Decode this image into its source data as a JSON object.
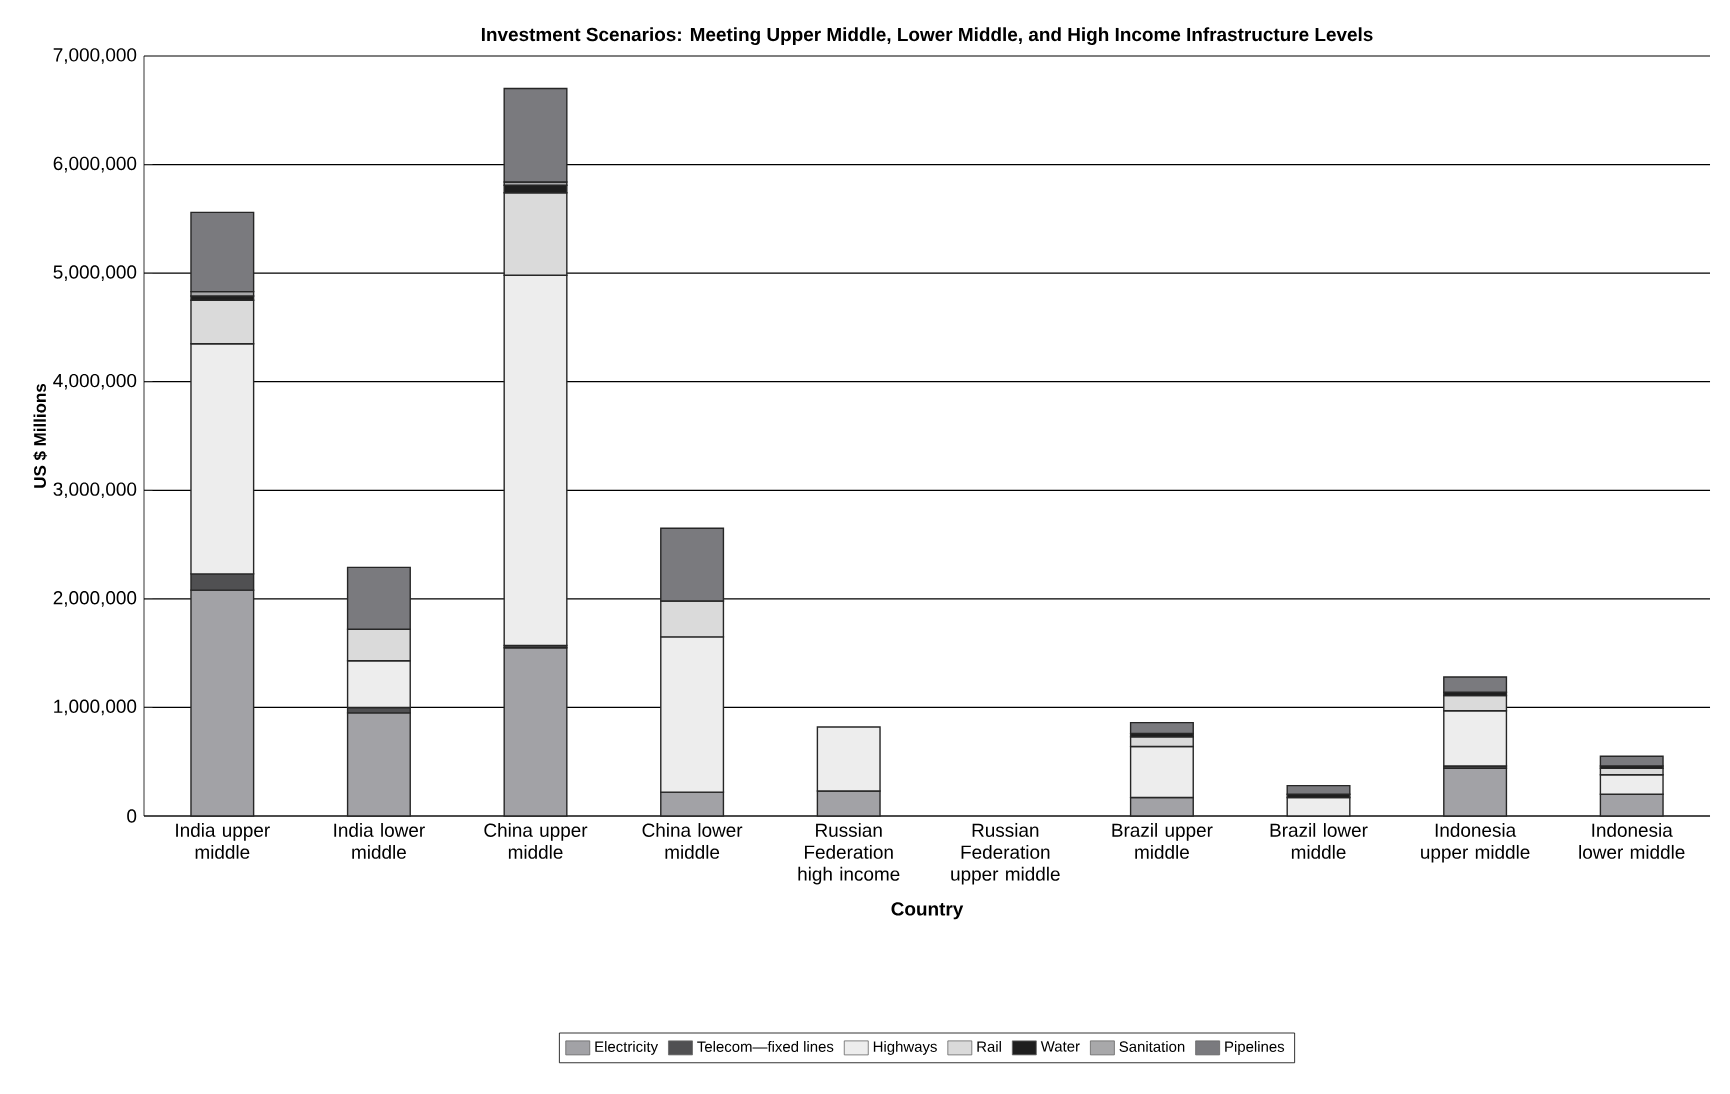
{
  "chart_data": {
    "type": "bar",
    "stacked": true,
    "title": "Investment Scenarios: Meeting Upper Middle, Lower Middle, and High Income Infrastructure Levels",
    "xlabel": "Country",
    "ylabel": "US $ Millions",
    "categories": [
      "India upper middle",
      "India lower middle",
      "China upper middle",
      "China lower middle",
      "Russian Federation high income",
      "Russian Federation upper middle",
      "Brazil upper middle",
      "Brazil lower middle",
      "Indonesia upper middle",
      "Indonesia lower middle"
    ],
    "series": [
      {
        "name": "Electricity",
        "color": "#a2a2a6",
        "values": [
          2080000,
          950000,
          1550000,
          220000,
          230000,
          null,
          170000,
          null,
          440000,
          200000
        ]
      },
      {
        "name": "Telecom—fixed lines",
        "color": "#505052",
        "values": [
          150000,
          50000,
          20000,
          null,
          null,
          null,
          null,
          null,
          20000,
          null
        ]
      },
      {
        "name": "Highways",
        "color": "#ededed",
        "values": [
          2120000,
          430000,
          3410000,
          1430000,
          590000,
          null,
          470000,
          170000,
          510000,
          180000
        ]
      },
      {
        "name": "Rail",
        "color": "#dadada",
        "values": [
          400000,
          290000,
          760000,
          330000,
          null,
          null,
          90000,
          null,
          140000,
          60000
        ]
      },
      {
        "name": "Water",
        "color": "#1e1e1e",
        "values": [
          40000,
          null,
          70000,
          null,
          null,
          null,
          30000,
          30000,
          30000,
          20000
        ]
      },
      {
        "name": "Sanitation",
        "color": "#a8a8aa",
        "values": [
          40000,
          null,
          30000,
          null,
          null,
          null,
          null,
          null,
          null,
          null
        ]
      },
      {
        "name": "Pipelines",
        "color": "#7a7a7e",
        "values": [
          730000,
          570000,
          860000,
          670000,
          null,
          null,
          100000,
          80000,
          140000,
          90000
        ]
      }
    ],
    "ylim": [
      0,
      7000000
    ],
    "yticks": [
      {
        "value": 0,
        "label": "0"
      },
      {
        "value": 1000000,
        "label": "1,000,000"
      },
      {
        "value": 2000000,
        "label": "2,000,000"
      },
      {
        "value": 3000000,
        "label": "3,000,000"
      },
      {
        "value": 4000000,
        "label": "4,000,000"
      },
      {
        "value": 5000000,
        "label": "5,000,000"
      },
      {
        "value": 6000000,
        "label": "6,000,000"
      },
      {
        "value": 7000000,
        "label": "7,000,000"
      }
    ],
    "grid": "y",
    "legend": "bottom"
  }
}
